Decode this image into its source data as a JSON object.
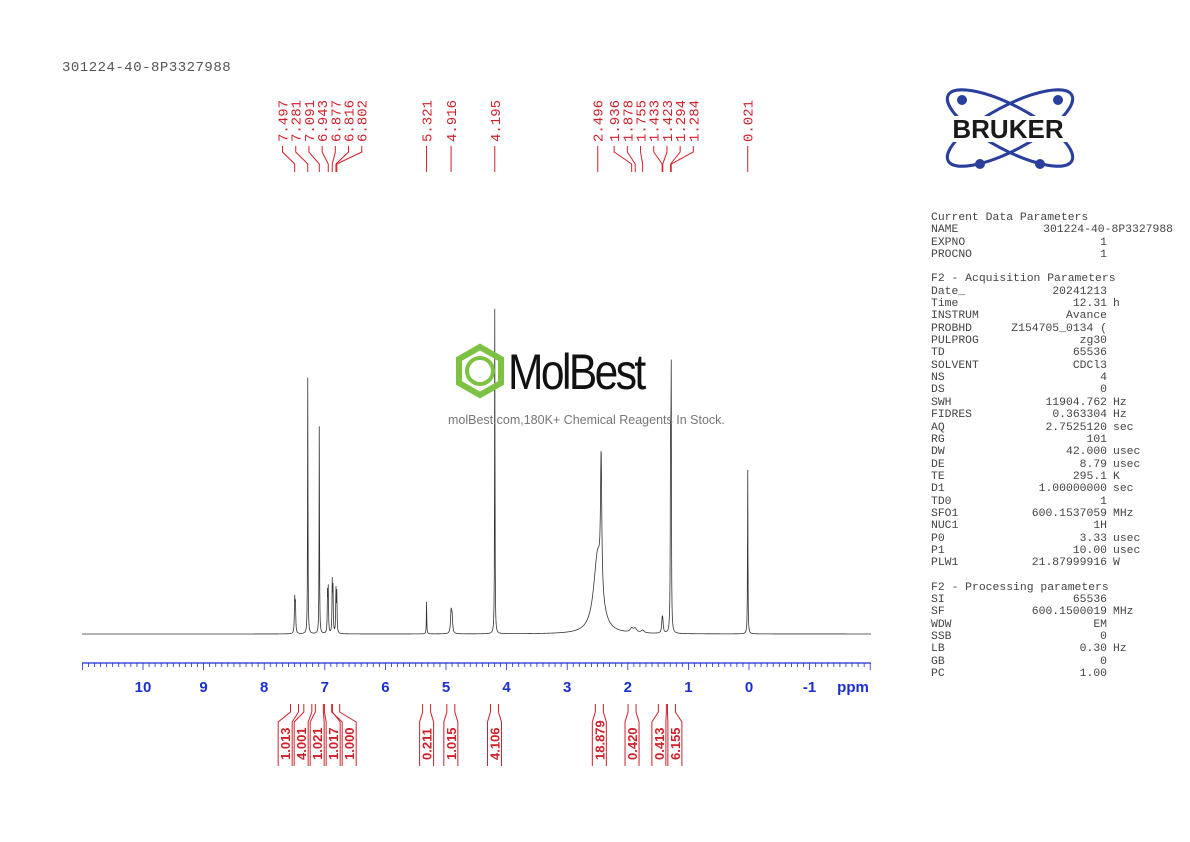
{
  "title": "301224-40-8P3327988",
  "logo": {
    "text": "BRUKER",
    "color": "#2a3f9c"
  },
  "watermark": {
    "name": "MolBest",
    "tagline": "molBest.com,180K+ Chemical Reagents In Stock.",
    "color": "#7dc242"
  },
  "chart_data": {
    "type": "line",
    "xlabel": "ppm",
    "xlim": [
      11,
      -2
    ],
    "xticks": [
      10,
      9,
      8,
      7,
      6,
      5,
      4,
      3,
      2,
      1,
      0,
      -1
    ],
    "grid": false,
    "line_color": "#333333",
    "label_color": "#d0202a",
    "axis_color": "#1a2fd0",
    "peaks": [
      {
        "ppm": 7.497,
        "h": 0.1,
        "w": 0.006
      },
      {
        "ppm": 7.485,
        "h": 0.09,
        "w": 0.006
      },
      {
        "ppm": 7.281,
        "h": 0.78,
        "w": 0.004
      },
      {
        "ppm": 7.091,
        "h": 0.64,
        "w": 0.004
      },
      {
        "ppm": 6.955,
        "h": 0.12,
        "w": 0.005
      },
      {
        "ppm": 6.943,
        "h": 0.13,
        "w": 0.005
      },
      {
        "ppm": 6.877,
        "h": 0.15,
        "w": 0.005
      },
      {
        "ppm": 6.865,
        "h": 0.13,
        "w": 0.005
      },
      {
        "ppm": 6.816,
        "h": 0.13,
        "w": 0.005
      },
      {
        "ppm": 6.802,
        "h": 0.12,
        "w": 0.005
      },
      {
        "ppm": 5.321,
        "h": 0.1,
        "w": 0.004
      },
      {
        "ppm": 4.916,
        "h": 0.065,
        "w": 0.01
      },
      {
        "ppm": 4.9,
        "h": 0.05,
        "w": 0.01
      },
      {
        "ppm": 4.195,
        "h": 1.0,
        "w": 0.004
      },
      {
        "ppm": 2.496,
        "h": 0.24,
        "w": 0.08
      },
      {
        "ppm": 2.44,
        "h": 0.4,
        "w": 0.012
      },
      {
        "ppm": 1.936,
        "h": 0.012,
        "w": 0.03
      },
      {
        "ppm": 1.878,
        "h": 0.012,
        "w": 0.03
      },
      {
        "ppm": 1.755,
        "h": 0.008,
        "w": 0.03
      },
      {
        "ppm": 1.433,
        "h": 0.035,
        "w": 0.01
      },
      {
        "ppm": 1.423,
        "h": 0.03,
        "w": 0.01
      },
      {
        "ppm": 1.294,
        "h": 0.6,
        "w": 0.005
      },
      {
        "ppm": 1.284,
        "h": 0.77,
        "w": 0.004
      },
      {
        "ppm": 0.021,
        "h": 0.5,
        "w": 0.004
      }
    ],
    "peak_labels": [
      "7.497",
      "7.281",
      "7.091",
      "6.943",
      "6.877",
      "6.816",
      "6.802",
      "5.321",
      "4.916",
      "4.195",
      "2.496",
      "1.936",
      "1.878",
      "1.755",
      "1.433",
      "1.423",
      "1.294",
      "1.284",
      "0.021"
    ],
    "integrals": [
      {
        "ppm": 7.5,
        "value": "1.013"
      },
      {
        "ppm": 7.28,
        "value": "4.001"
      },
      {
        "ppm": 7.09,
        "value": "1.021"
      },
      {
        "ppm": 6.94,
        "value": "1.017"
      },
      {
        "ppm": 6.82,
        "value": "1.000"
      },
      {
        "ppm": 5.32,
        "value": "0.211"
      },
      {
        "ppm": 4.92,
        "value": "1.015"
      },
      {
        "ppm": 4.2,
        "value": "4.106"
      },
      {
        "ppm": 2.47,
        "value": "18.879"
      },
      {
        "ppm": 1.93,
        "value": "0.420"
      },
      {
        "ppm": 1.43,
        "value": "0.413"
      },
      {
        "ppm": 1.28,
        "value": "6.155"
      }
    ]
  },
  "parameters": {
    "sections": [
      {
        "heading": "Current Data Parameters",
        "rows": [
          [
            "NAME",
            "301224-40-8P3327988",
            ""
          ],
          [
            "EXPNO",
            "1",
            ""
          ],
          [
            "PROCNO",
            "1",
            ""
          ]
        ]
      },
      {
        "heading": "F2 - Acquisition Parameters",
        "rows": [
          [
            "Date_",
            "20241213",
            ""
          ],
          [
            "Time",
            "12.31",
            "h"
          ],
          [
            "INSTRUM",
            "Avance",
            ""
          ],
          [
            "PROBHD",
            "Z154705_0134 (",
            ""
          ],
          [
            "PULPROG",
            "zg30",
            ""
          ],
          [
            "TD",
            "65536",
            ""
          ],
          [
            "SOLVENT",
            "CDCl3",
            ""
          ],
          [
            "NS",
            "4",
            ""
          ],
          [
            "DS",
            "0",
            ""
          ],
          [
            "SWH",
            "11904.762",
            "Hz"
          ],
          [
            "FIDRES",
            "0.363304",
            "Hz"
          ],
          [
            "AQ",
            "2.7525120",
            "sec"
          ],
          [
            "RG",
            "101",
            ""
          ],
          [
            "DW",
            "42.000",
            "usec"
          ],
          [
            "DE",
            "8.79",
            "usec"
          ],
          [
            "TE",
            "295.1",
            "K"
          ],
          [
            "D1",
            "1.00000000",
            "sec"
          ],
          [
            "TD0",
            "1",
            ""
          ],
          [
            "SFO1",
            "600.1537059",
            "MHz"
          ],
          [
            "NUC1",
            "1H",
            ""
          ],
          [
            "P0",
            "3.33",
            "usec"
          ],
          [
            "P1",
            "10.00",
            "usec"
          ],
          [
            "PLW1",
            "21.87999916",
            "W"
          ]
        ]
      },
      {
        "heading": "F2 - Processing parameters",
        "rows": [
          [
            "SI",
            "65536",
            ""
          ],
          [
            "SF",
            "600.1500019",
            "MHz"
          ],
          [
            "WDW",
            "EM",
            ""
          ],
          [
            "SSB",
            "0",
            ""
          ],
          [
            "LB",
            "0.30",
            "Hz"
          ],
          [
            "GB",
            "0",
            ""
          ],
          [
            "PC",
            "1.00",
            ""
          ]
        ]
      }
    ]
  }
}
